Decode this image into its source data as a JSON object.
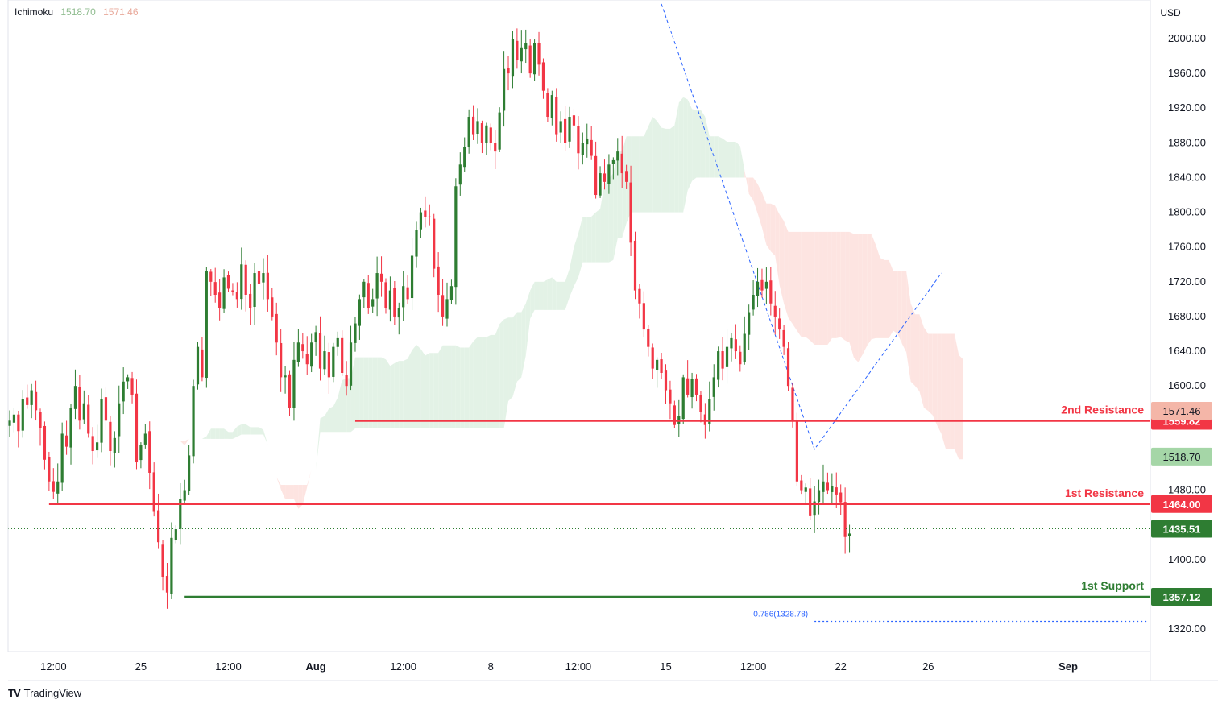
{
  "indicator": {
    "name": "Ichimoku",
    "value1": "1518.70",
    "value2": "1571.46",
    "value1_color": "#8fbc8f",
    "value2_color": "#e8a89a"
  },
  "branding": {
    "logo": "TV",
    "name": "TradingView"
  },
  "colors": {
    "up": "#22ab94",
    "up_candle": "#2e7d32",
    "down": "#f23645",
    "resistance": "#f23645",
    "support": "#2e7d32",
    "fib": "#2962ff",
    "cloud_green": "#e3f2e6",
    "cloud_red": "#fde4e1"
  },
  "chart_data": {
    "type": "candlestick",
    "currency": "USD",
    "y_ticks": [
      "2000.00",
      "1960.00",
      "1920.00",
      "1880.00",
      "1840.00",
      "1800.00",
      "1760.00",
      "1720.00",
      "1680.00",
      "1640.00",
      "1600.00",
      "1480.00",
      "1400.00",
      "1320.00"
    ],
    "y_tick_values": [
      2000,
      1960,
      1920,
      1880,
      1840,
      1800,
      1760,
      1720,
      1680,
      1640,
      1600,
      1480,
      1400,
      1320
    ],
    "ylim": [
      1295,
      2035
    ],
    "x_ticks": [
      {
        "label": "12:00",
        "bar": 10
      },
      {
        "label": "25",
        "bar": 30
      },
      {
        "label": "12:00",
        "bar": 50
      },
      {
        "label": "Aug",
        "bar": 70
      },
      {
        "label": "12:00",
        "bar": 90
      },
      {
        "label": "8",
        "bar": 110
      },
      {
        "label": "12:00",
        "bar": 130
      },
      {
        "label": "15",
        "bar": 150
      },
      {
        "label": "12:00",
        "bar": 170
      },
      {
        "label": "22",
        "bar": 190
      },
      {
        "label": "26",
        "bar": 210
      },
      {
        "label": "Sep",
        "bar": 242
      }
    ],
    "x_tick_bold": [
      "Aug",
      "Sep"
    ],
    "levels": [
      {
        "name": "2nd Resistance",
        "value": 1559.82,
        "label": "1559.82",
        "color": "#f23645",
        "start_bar": 79
      },
      {
        "name": "1st Resistance",
        "value": 1464.0,
        "label": "1464.00",
        "color": "#f23645",
        "start_bar": 9
      },
      {
        "name": "1st Support",
        "value": 1357.12,
        "label": "1357.12",
        "color": "#2e7d32",
        "start_bar": 40
      }
    ],
    "price_tags": [
      {
        "label": "1571.46",
        "value": 1571.46,
        "color": "#f4b6a8",
        "text_color": "#131722"
      },
      {
        "label": "1518.70",
        "value": 1518.7,
        "color": "#a5d6a7",
        "text_color": "#131722"
      },
      {
        "label": "1435.51",
        "value": 1435.51,
        "color": "#2e7d32",
        "text_color": "#ffffff"
      }
    ],
    "last_price": 1435.51,
    "fib": {
      "label": "0.786(1328.78)",
      "value": 1328.78,
      "start_bar": 184
    },
    "closes": [
      1560,
      1567,
      1548,
      1585,
      1578,
      1595,
      1572,
      1551,
      1515,
      1490,
      1478,
      1490,
      1545,
      1530,
      1575,
      1600,
      1560,
      1580,
      1545,
      1525,
      1535,
      1585,
      1560,
      1525,
      1540,
      1580,
      1605,
      1610,
      1590,
      1512,
      1532,
      1545,
      1500,
      1455,
      1420,
      1380,
      1362,
      1425,
      1435,
      1470,
      1480,
      1520,
      1600,
      1645,
      1610,
      1732,
      1720,
      1705,
      1690,
      1725,
      1712,
      1708,
      1700,
      1740,
      1705,
      1690,
      1730,
      1718,
      1730,
      1700,
      1680,
      1650,
      1610,
      1612,
      1575,
      1630,
      1650,
      1640,
      1625,
      1650,
      1662,
      1620,
      1640,
      1610,
      1645,
      1655,
      1615,
      1600,
      1650,
      1672,
      1700,
      1720,
      1690,
      1700,
      1730,
      1720,
      1690,
      1710,
      1680,
      1690,
      1715,
      1700,
      1750,
      1780,
      1800,
      1795,
      1795,
      1735,
      1705,
      1680,
      1700,
      1715,
      1830,
      1855,
      1875,
      1910,
      1890,
      1905,
      1880,
      1900,
      1880,
      1870,
      1915,
      1965,
      1960,
      2000,
      1975,
      1990,
      1995,
      1960,
      1995,
      1970,
      1940,
      1910,
      1935,
      1890,
      1905,
      1880,
      1910,
      1900,
      1868,
      1880,
      1885,
      1865,
      1820,
      1845,
      1835,
      1855,
      1860,
      1870,
      1845,
      1835,
      1765,
      1710,
      1695,
      1665,
      1645,
      1620,
      1630,
      1615,
      1595,
      1580,
      1555,
      1565,
      1610,
      1590,
      1608,
      1590,
      1570,
      1555,
      1585,
      1610,
      1640,
      1620,
      1645,
      1655,
      1640,
      1625,
      1660,
      1685,
      1705,
      1720,
      1710,
      1720,
      1695,
      1680,
      1665,
      1645,
      1600,
      1560,
      1490,
      1480,
      1483,
      1450,
      1467,
      1480,
      1490,
      1480,
      1485,
      1475,
      1466,
      1426,
      1430
    ]
  }
}
